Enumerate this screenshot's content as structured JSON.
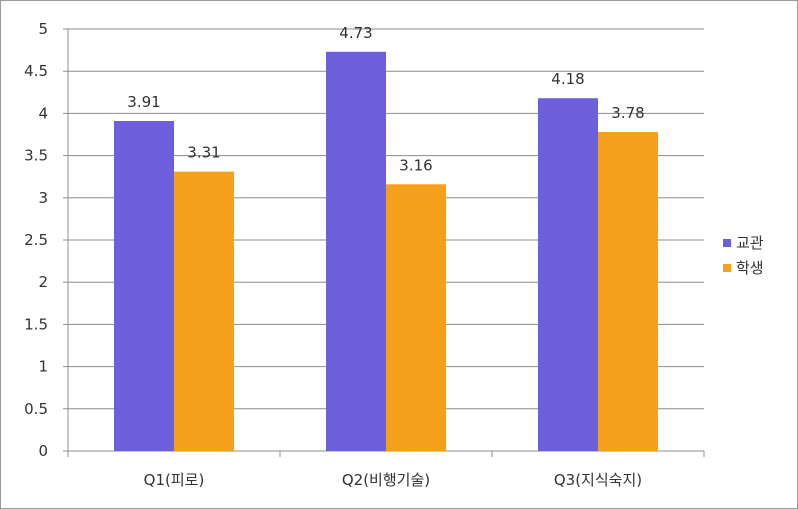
{
  "chart_data": {
    "type": "bar",
    "title": "",
    "xlabel": "",
    "ylabel": "",
    "categories": [
      "Q1(피로)",
      "Q2(비행기술)",
      "Q3(지식숙지)"
    ],
    "series": [
      {
        "name": "교관",
        "values": [
          3.91,
          4.73,
          4.18
        ],
        "color": "#6b5fdc"
      },
      {
        "name": "학생",
        "values": [
          3.31,
          3.16,
          3.78
        ],
        "color": "#f5a11c"
      }
    ],
    "data_labels": [
      [
        "3.91",
        "4.73",
        "4.18"
      ],
      [
        "3.31",
        "3.16",
        "3.78"
      ]
    ],
    "ylim": [
      0,
      5
    ],
    "yticks": [
      0,
      0.5,
      1,
      1.5,
      2,
      2.5,
      3,
      3.5,
      4,
      4.5,
      5
    ],
    "ytick_labels": [
      "0",
      "0.5",
      "1",
      "1.5",
      "2",
      "2.5",
      "3",
      "3.5",
      "4",
      "4.5",
      "5"
    ],
    "grid": true,
    "legend_position": "right"
  }
}
